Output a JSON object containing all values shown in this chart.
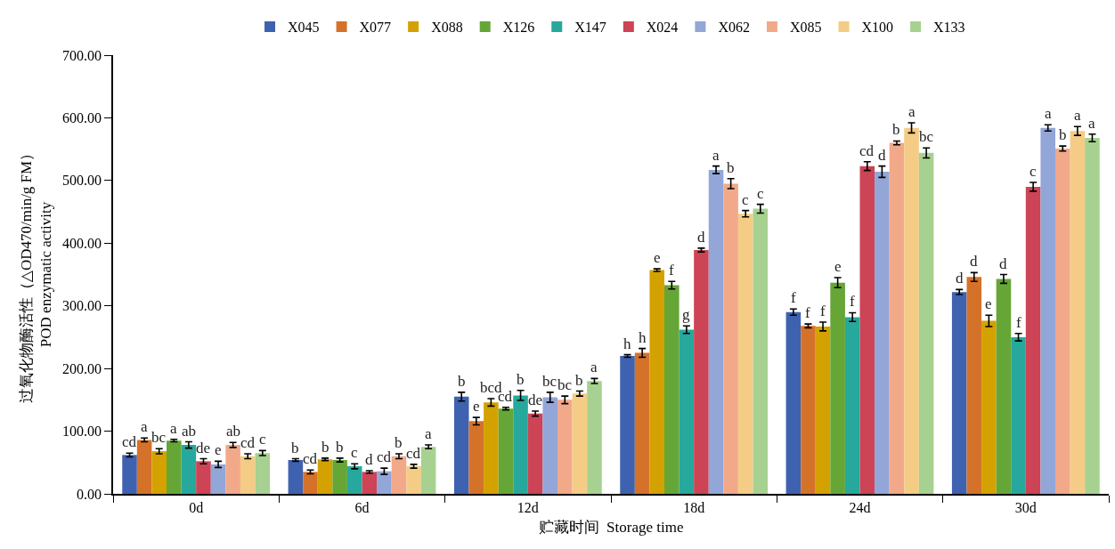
{
  "chart_data": {
    "type": "bar",
    "xlabel": "贮藏时间  Storage time",
    "ylabel": "过氧化物酶活性（△OD470/min/g FM）\nPOD enzymatic activity",
    "categories": [
      "0d",
      "6d",
      "12d",
      "18d",
      "24d",
      "30d"
    ],
    "ylim": [
      0,
      700
    ],
    "yticks": [
      {
        "value": 0,
        "label": "0.00"
      },
      {
        "value": 100,
        "label": "100.00"
      },
      {
        "value": 200,
        "label": "200.00"
      },
      {
        "value": 300,
        "label": "300.00"
      },
      {
        "value": 400,
        "label": "400.00"
      },
      {
        "value": 500,
        "label": "500.00"
      },
      {
        "value": 600,
        "label": "600.00"
      },
      {
        "value": 700,
        "label": "700.00"
      }
    ],
    "grid": false,
    "legend": "top",
    "series": [
      {
        "name": "X045",
        "color": "#3f62b0",
        "values": [
          62,
          54,
          155,
          220,
          290,
          322
        ],
        "errors": [
          3,
          2,
          7,
          2,
          5,
          4
        ],
        "value_labels": [
          "cd",
          "b",
          "b",
          "h",
          "f",
          "d"
        ]
      },
      {
        "name": "X077",
        "color": "#d5722a",
        "values": [
          86,
          35,
          116,
          225,
          268,
          346
        ],
        "errors": [
          3,
          3,
          6,
          7,
          3,
          7
        ],
        "value_labels": [
          "a",
          "cd",
          "e",
          "h",
          "f",
          "d"
        ]
      },
      {
        "name": "X088",
        "color": "#d4a200",
        "values": [
          68,
          55,
          146,
          357,
          267,
          276
        ],
        "errors": [
          4,
          2,
          6,
          2,
          7,
          9
        ],
        "value_labels": [
          "bc",
          "b",
          "bcd",
          "e",
          "f",
          "e"
        ]
      },
      {
        "name": "X126",
        "color": "#65a636",
        "values": [
          85,
          54,
          136,
          333,
          337,
          343
        ],
        "errors": [
          2,
          3,
          2,
          6,
          8,
          7
        ],
        "value_labels": [
          "a",
          "b",
          "cd",
          "f",
          "e",
          "d"
        ]
      },
      {
        "name": "X147",
        "color": "#27a89c",
        "values": [
          78,
          44,
          157,
          262,
          282,
          250
        ],
        "errors": [
          5,
          4,
          8,
          6,
          7,
          6
        ],
        "value_labels": [
          "ab",
          "c",
          "b",
          "g",
          "f",
          "f"
        ]
      },
      {
        "name": "X024",
        "color": "#cc4455",
        "values": [
          52,
          35,
          128,
          389,
          523,
          490
        ],
        "errors": [
          4,
          2,
          4,
          3,
          7,
          7
        ],
        "value_labels": [
          "de",
          "d",
          "de",
          "d",
          "cd",
          "c"
        ]
      },
      {
        "name": "X062",
        "color": "#93a6d8",
        "values": [
          47,
          36,
          154,
          517,
          514,
          584
        ],
        "errors": [
          5,
          5,
          8,
          6,
          9,
          5
        ],
        "value_labels": [
          "e",
          "cd",
          "bc",
          "a",
          "d",
          "a"
        ]
      },
      {
        "name": "X085",
        "color": "#f2a98a",
        "values": [
          78,
          60,
          150,
          495,
          560,
          551
        ],
        "errors": [
          4,
          4,
          6,
          8,
          3,
          4
        ],
        "value_labels": [
          "ab",
          "b",
          "bc",
          "b",
          "b",
          "b"
        ]
      },
      {
        "name": "X100",
        "color": "#f4cc85",
        "values": [
          60,
          44,
          160,
          447,
          584,
          579
        ],
        "errors": [
          4,
          3,
          4,
          5,
          8,
          7
        ],
        "value_labels": [
          "cd",
          "cd",
          "b",
          "c",
          "a",
          "a"
        ]
      },
      {
        "name": "X133",
        "color": "#a7d191",
        "values": [
          65,
          75,
          180,
          455,
          544,
          568
        ],
        "errors": [
          4,
          3,
          4,
          7,
          8,
          6
        ],
        "value_labels": [
          "c",
          "a",
          "a",
          "c",
          "bc",
          "a"
        ]
      }
    ]
  }
}
